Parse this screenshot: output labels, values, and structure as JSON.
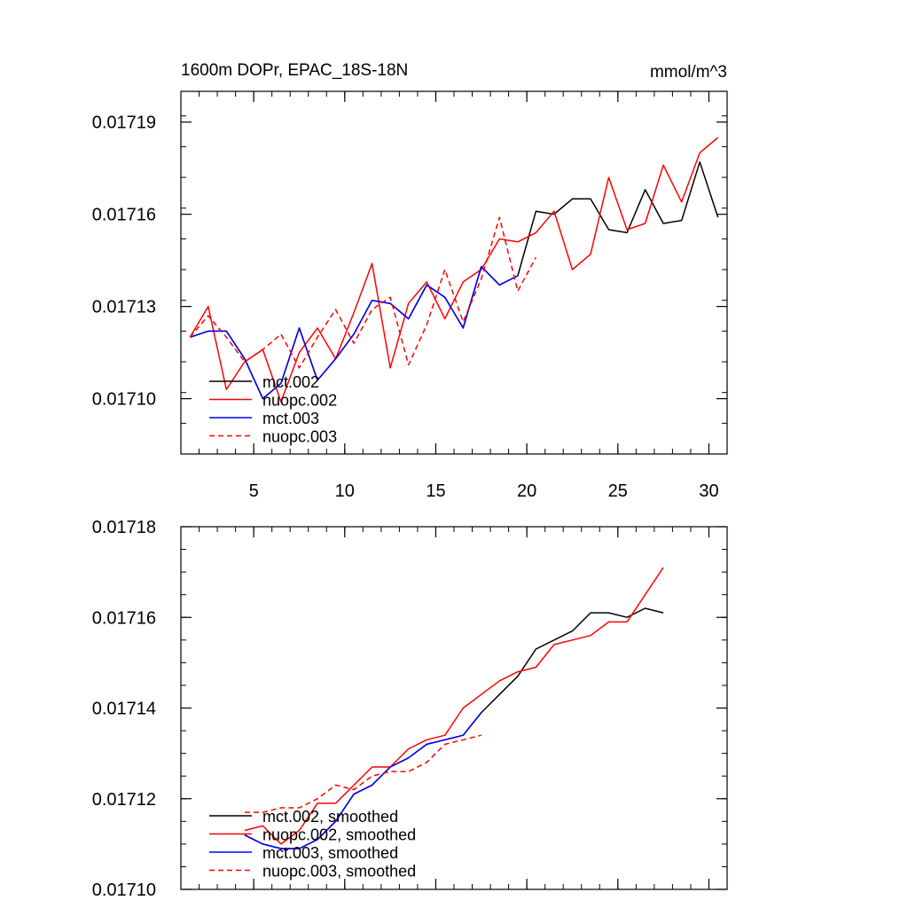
{
  "chart_data": [
    {
      "type": "line",
      "title": "1600m DOPr, EPAC_18S-18N",
      "units": "mmol/m^3",
      "xlim": [
        1,
        31
      ],
      "ylim": [
        0.017082,
        0.0172
      ],
      "x_ticks": [
        5,
        10,
        15,
        20,
        25,
        30
      ],
      "x_tick_labels": [
        "5",
        "10",
        "15",
        "20",
        "25",
        "30"
      ],
      "y_ticks": [
        0.0171,
        0.01713,
        0.01716,
        0.01719
      ],
      "y_tick_labels": [
        "0.01710",
        "0.01713",
        "0.01716",
        "0.01719"
      ],
      "y_minor_step": 1e-05,
      "legend": "bottom-left",
      "series": [
        {
          "name": "mct.002",
          "color": "#000000",
          "dash": false,
          "x_start": 1.5,
          "values": [
            0.01712,
            0.017122,
            0.017122,
            0.017113,
            0.0171,
            0.017105,
            0.017123,
            0.017106,
            0.017113,
            0.017121,
            0.017132,
            0.017131,
            0.017126,
            0.017137,
            0.017133,
            0.017123,
            0.017143,
            0.017137,
            0.01714,
            0.017161,
            0.01716,
            0.017165,
            0.017165,
            0.017155,
            0.017154,
            0.017168,
            0.017157,
            0.017158,
            0.017177,
            0.017159
          ]
        },
        {
          "name": "nuopc.002",
          "color": "#ff0000",
          "dash": false,
          "x_start": 1.5,
          "values": [
            0.01712,
            0.01713,
            0.017103,
            0.017112,
            0.017116,
            0.017099,
            0.017115,
            0.017123,
            0.017113,
            0.017128,
            0.017144,
            0.01711,
            0.017131,
            0.017138,
            0.017126,
            0.017138,
            0.017142,
            0.017152,
            0.017151,
            0.017154,
            0.017161,
            0.017142,
            0.017147,
            0.017172,
            0.017155,
            0.017157,
            0.017176,
            0.017164,
            0.01718,
            0.017185
          ]
        },
        {
          "name": "mct.003",
          "color": "#0000ff",
          "dash": false,
          "x_start": 1.5,
          "values": [
            0.01712,
            0.017122,
            0.017122,
            0.017113,
            0.0171,
            0.017105,
            0.017123,
            0.017106,
            0.017113,
            0.017121,
            0.017132,
            0.017131,
            0.017126,
            0.017137,
            0.017133,
            0.017123,
            0.017143,
            0.017137,
            0.01714
          ]
        },
        {
          "name": "nuopc.003",
          "color": "#ff0000",
          "dash": true,
          "x_start": 1.5,
          "values": [
            0.01712,
            0.017127,
            0.01712,
            0.017112,
            0.017116,
            0.017121,
            0.01711,
            0.01712,
            0.017129,
            0.017118,
            0.017129,
            0.017133,
            0.017111,
            0.017124,
            0.017142,
            0.017125,
            0.017139,
            0.017159,
            0.017135,
            0.017146
          ]
        }
      ]
    },
    {
      "type": "line",
      "title": "",
      "xlim": [
        1,
        31
      ],
      "ylim": [
        0.0171,
        0.01718
      ],
      "x_ticks": [
        5,
        10,
        15,
        20,
        25,
        30
      ],
      "x_tick_labels": [],
      "y_ticks": [
        0.0171,
        0.01712,
        0.01714,
        0.01716,
        0.01718
      ],
      "y_tick_labels": [
        "0.01710",
        "0.01712",
        "0.01714",
        "0.01716",
        "0.01718"
      ],
      "y_minor_step": 5e-06,
      "legend": "bottom-left",
      "series": [
        {
          "name": "mct.002, smoothed",
          "color": "#000000",
          "dash": false,
          "x_start": 4.5,
          "values": [
            0.017112,
            0.01711,
            0.017109,
            0.017109,
            0.017111,
            0.017115,
            0.017121,
            0.017123,
            0.017127,
            0.017129,
            0.017132,
            0.017133,
            0.017134,
            0.017139,
            0.017143,
            0.017147,
            0.017153,
            0.017155,
            0.017157,
            0.017161,
            0.017161,
            0.01716,
            0.017162,
            0.017161
          ]
        },
        {
          "name": "nuopc.002, smoothed",
          "color": "#ff0000",
          "dash": false,
          "x_start": 4.5,
          "values": [
            0.017113,
            0.017114,
            0.01711,
            0.017113,
            0.017119,
            0.017119,
            0.017123,
            0.017127,
            0.017127,
            0.017131,
            0.017133,
            0.017134,
            0.01714,
            0.017143,
            0.017146,
            0.017148,
            0.017149,
            0.017154,
            0.017155,
            0.017156,
            0.017159,
            0.017159,
            0.017165,
            0.017171
          ]
        },
        {
          "name": "mct.003, smoothed",
          "color": "#0000ff",
          "dash": false,
          "x_start": 4.5,
          "values": [
            0.017112,
            0.01711,
            0.017109,
            0.017109,
            0.017111,
            0.017115,
            0.017121,
            0.017123,
            0.017127,
            0.017129,
            0.017132,
            0.017133,
            0.017134,
            0.017139
          ]
        },
        {
          "name": "nuopc.003, smoothed",
          "color": "#ff0000",
          "dash": true,
          "x_start": 4.5,
          "values": [
            0.017117,
            0.017117,
            0.017118,
            0.017118,
            0.01712,
            0.017123,
            0.017122,
            0.017125,
            0.017126,
            0.017126,
            0.017128,
            0.017132,
            0.017133,
            0.017134
          ]
        }
      ]
    }
  ]
}
